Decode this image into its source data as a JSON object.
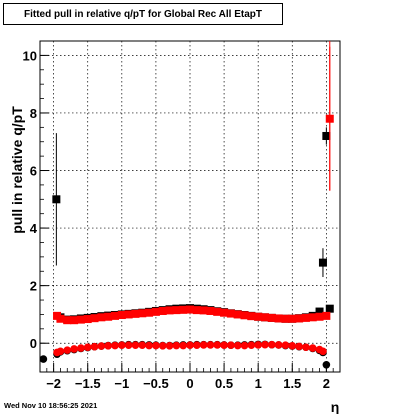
{
  "chart_data": {
    "type": "scatter",
    "title": "Fitted pull in relative q/pT for Global Rec All EtapT",
    "xlabel": "η",
    "ylabel": "pull in relative q/pT",
    "timestamp": "Wed Nov 10 18:56:25 2021",
    "xlim": [
      -2.2,
      2.2
    ],
    "ylim": [
      -1.0,
      10.5
    ],
    "xticks": [
      "−2",
      "−1.5",
      "−1",
      "−0.5",
      "0",
      "0.5",
      "1",
      "1.5",
      "2"
    ],
    "xtick_values": [
      -2,
      -1.5,
      -1,
      -0.5,
      0,
      0.5,
      1,
      1.5,
      2
    ],
    "yticks": [
      "0",
      "2",
      "4",
      "6",
      "8",
      "10"
    ],
    "ytick_values": [
      0,
      2,
      4,
      6,
      8,
      10
    ],
    "grid": true,
    "series": [
      {
        "color": "#000000",
        "marker": "square",
        "x": [
          -1.96,
          -1.9,
          -1.8,
          -1.7,
          -1.6,
          -1.5,
          -1.4,
          -1.3,
          -1.2,
          -1.1,
          -1.0,
          -0.9,
          -0.8,
          -0.7,
          -0.6,
          -0.5,
          -0.4,
          -0.3,
          -0.2,
          -0.1,
          0.0,
          0.1,
          0.2,
          0.3,
          0.4,
          0.5,
          0.6,
          0.7,
          0.8,
          0.9,
          1.0,
          1.1,
          1.2,
          1.3,
          1.4,
          1.5,
          1.6,
          1.7,
          1.8,
          1.9,
          1.95,
          2.0,
          2.05
        ],
        "y": [
          5.0,
          0.9,
          0.82,
          0.83,
          0.86,
          0.88,
          0.91,
          0.94,
          0.96,
          0.98,
          1.0,
          1.02,
          1.04,
          1.06,
          1.09,
          1.12,
          1.15,
          1.18,
          1.2,
          1.21,
          1.22,
          1.2,
          1.18,
          1.15,
          1.11,
          1.08,
          1.04,
          1.01,
          0.98,
          0.95,
          0.92,
          0.9,
          0.88,
          0.86,
          0.85,
          0.85,
          0.87,
          0.9,
          0.95,
          1.1,
          2.8,
          7.2,
          1.2
        ],
        "err": [
          2.3,
          0.08,
          0.05,
          0.04,
          0.04,
          0.04,
          0.04,
          0.04,
          0.04,
          0.04,
          0.04,
          0.04,
          0.04,
          0.04,
          0.04,
          0.04,
          0.04,
          0.04,
          0.04,
          0.04,
          0.04,
          0.04,
          0.04,
          0.04,
          0.04,
          0.04,
          0.04,
          0.04,
          0.04,
          0.04,
          0.04,
          0.04,
          0.04,
          0.04,
          0.04,
          0.04,
          0.04,
          0.04,
          0.05,
          0.08,
          0.5,
          0.3,
          0.1
        ]
      },
      {
        "color": "#ff0000",
        "marker": "square",
        "x": [
          -1.95,
          -1.9,
          -1.8,
          -1.7,
          -1.6,
          -1.5,
          -1.4,
          -1.3,
          -1.2,
          -1.1,
          -1.0,
          -0.9,
          -0.8,
          -0.7,
          -0.6,
          -0.5,
          -0.4,
          -0.3,
          -0.2,
          -0.1,
          0.0,
          0.1,
          0.2,
          0.3,
          0.4,
          0.5,
          0.6,
          0.7,
          0.8,
          0.9,
          1.0,
          1.1,
          1.2,
          1.3,
          1.4,
          1.5,
          1.6,
          1.7,
          1.8,
          1.9,
          2.0,
          2.05
        ],
        "y": [
          0.95,
          0.85,
          0.8,
          0.8,
          0.82,
          0.84,
          0.87,
          0.9,
          0.92,
          0.95,
          0.98,
          1.0,
          1.02,
          1.04,
          1.06,
          1.09,
          1.12,
          1.14,
          1.15,
          1.16,
          1.17,
          1.15,
          1.14,
          1.12,
          1.09,
          1.06,
          1.03,
          1.0,
          0.97,
          0.94,
          0.92,
          0.9,
          0.88,
          0.86,
          0.85,
          0.85,
          0.86,
          0.88,
          0.9,
          0.92,
          0.95,
          7.8
        ],
        "err": [
          0.06,
          0.05,
          0.04,
          0.04,
          0.04,
          0.04,
          0.04,
          0.04,
          0.04,
          0.04,
          0.04,
          0.04,
          0.04,
          0.04,
          0.04,
          0.04,
          0.04,
          0.04,
          0.04,
          0.04,
          0.04,
          0.04,
          0.04,
          0.04,
          0.04,
          0.04,
          0.04,
          0.04,
          0.04,
          0.04,
          0.04,
          0.04,
          0.04,
          0.04,
          0.04,
          0.04,
          0.04,
          0.04,
          0.04,
          0.05,
          0.06,
          2.5
        ]
      },
      {
        "color": "#000000",
        "marker": "circle",
        "x": [
          -2.15,
          -1.95,
          -1.9,
          -1.8,
          -1.7,
          -1.6,
          -1.5,
          -1.4,
          -1.3,
          -1.2,
          -1.1,
          -1.0,
          -0.9,
          -0.8,
          -0.7,
          -0.6,
          -0.5,
          -0.4,
          -0.3,
          -0.2,
          -0.1,
          0.0,
          0.1,
          0.2,
          0.3,
          0.4,
          0.5,
          0.6,
          0.7,
          0.8,
          0.9,
          1.0,
          1.1,
          1.2,
          1.3,
          1.4,
          1.5,
          1.6,
          1.7,
          1.8,
          1.9,
          1.95,
          2.0
        ],
        "y": [
          -0.55,
          -0.38,
          -0.3,
          -0.26,
          -0.22,
          -0.18,
          -0.15,
          -0.12,
          -0.1,
          -0.08,
          -0.07,
          -0.06,
          -0.05,
          -0.05,
          -0.05,
          -0.06,
          -0.07,
          -0.08,
          -0.08,
          -0.07,
          -0.06,
          -0.06,
          -0.05,
          -0.05,
          -0.05,
          -0.05,
          -0.06,
          -0.07,
          -0.07,
          -0.06,
          -0.05,
          -0.04,
          -0.04,
          -0.05,
          -0.06,
          -0.08,
          -0.1,
          -0.12,
          -0.14,
          -0.18,
          -0.25,
          -0.32,
          -0.75
        ],
        "err": [
          0.06,
          0.05,
          0.04,
          0.03,
          0.03,
          0.03,
          0.03,
          0.03,
          0.03,
          0.03,
          0.03,
          0.03,
          0.03,
          0.03,
          0.03,
          0.03,
          0.03,
          0.03,
          0.03,
          0.03,
          0.03,
          0.03,
          0.03,
          0.03,
          0.03,
          0.03,
          0.03,
          0.03,
          0.03,
          0.03,
          0.03,
          0.03,
          0.03,
          0.03,
          0.03,
          0.03,
          0.03,
          0.03,
          0.03,
          0.04,
          0.05,
          0.06,
          0.08
        ]
      },
      {
        "color": "#ff0000",
        "marker": "circle",
        "x": [
          -1.95,
          -1.9,
          -1.8,
          -1.7,
          -1.6,
          -1.5,
          -1.4,
          -1.3,
          -1.2,
          -1.1,
          -1.0,
          -0.9,
          -0.8,
          -0.7,
          -0.6,
          -0.5,
          -0.4,
          -0.3,
          -0.2,
          -0.1,
          0.0,
          0.1,
          0.2,
          0.3,
          0.4,
          0.5,
          0.6,
          0.7,
          0.8,
          0.9,
          1.0,
          1.1,
          1.2,
          1.3,
          1.4,
          1.5,
          1.6,
          1.7,
          1.8,
          1.9,
          1.95
        ],
        "y": [
          -0.32,
          -0.28,
          -0.24,
          -0.2,
          -0.17,
          -0.14,
          -0.12,
          -0.1,
          -0.09,
          -0.08,
          -0.07,
          -0.07,
          -0.07,
          -0.07,
          -0.08,
          -0.08,
          -0.09,
          -0.09,
          -0.08,
          -0.08,
          -0.07,
          -0.07,
          -0.06,
          -0.06,
          -0.06,
          -0.07,
          -0.07,
          -0.08,
          -0.08,
          -0.07,
          -0.06,
          -0.05,
          -0.05,
          -0.06,
          -0.07,
          -0.09,
          -0.11,
          -0.14,
          -0.17,
          -0.22,
          -0.28
        ],
        "err": [
          0.04,
          0.04,
          0.03,
          0.03,
          0.03,
          0.03,
          0.03,
          0.03,
          0.03,
          0.03,
          0.03,
          0.03,
          0.03,
          0.03,
          0.03,
          0.03,
          0.03,
          0.03,
          0.03,
          0.03,
          0.03,
          0.03,
          0.03,
          0.03,
          0.03,
          0.03,
          0.03,
          0.03,
          0.03,
          0.03,
          0.03,
          0.03,
          0.03,
          0.03,
          0.03,
          0.03,
          0.03,
          0.03,
          0.03,
          0.04,
          0.05
        ]
      }
    ]
  }
}
